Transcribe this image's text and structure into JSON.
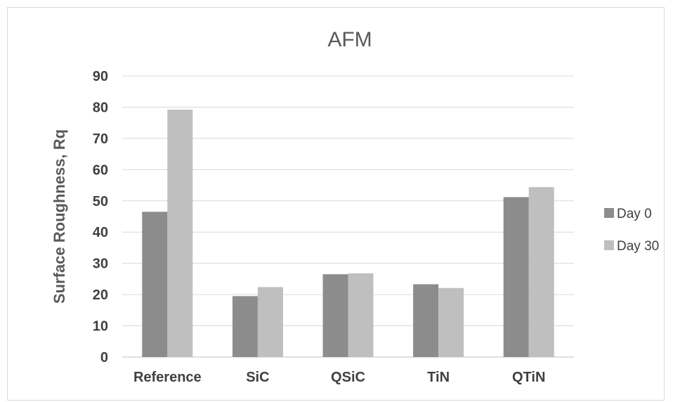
{
  "chart_data": {
    "type": "bar",
    "title": "AFM",
    "xlabel": "",
    "ylabel": "Surface Roughness, Rq",
    "ylim": [
      0,
      90
    ],
    "yticks": [
      0,
      10,
      20,
      30,
      40,
      50,
      60,
      70,
      80,
      90
    ],
    "categories": [
      "Reference",
      "SiC",
      "QSiC",
      "TiN",
      "QTiN"
    ],
    "series": [
      {
        "name": "Day 0",
        "color": "#8c8c8c",
        "values": [
          46.5,
          19.5,
          26.5,
          23.3,
          51.2
        ]
      },
      {
        "name": "Day 30",
        "color": "#bfbfbf",
        "values": [
          79.2,
          22.4,
          26.8,
          22.1,
          54.4
        ]
      }
    ],
    "grid": true,
    "legend_position": "right"
  }
}
